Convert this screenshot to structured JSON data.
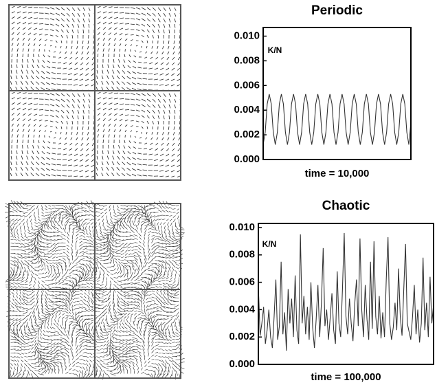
{
  "chart_data": [
    {
      "type": "line",
      "title": "Periodic",
      "ylabel": "K/N",
      "xlabel": "time = 10,000",
      "color": "#333333",
      "ylim": [
        0,
        0.0107
      ],
      "yticks": [
        {
          "value": 0,
          "label": "0.000"
        },
        0.002,
        0.004,
        0.006,
        0.008,
        {
          "value": 0.01,
          "label": "0.010"
        }
      ],
      "values": [
        0.0012,
        0.0022,
        0.0045,
        0.0053,
        0.0045,
        0.0022,
        0.0012,
        0.0022,
        0.0045,
        0.0053,
        0.0045,
        0.0022,
        0.0012,
        0.0022,
        0.0045,
        0.0053,
        0.0045,
        0.0022,
        0.0012,
        0.0022,
        0.0045,
        0.0053,
        0.0045,
        0.0022,
        0.0012,
        0.0022,
        0.0045,
        0.0053,
        0.0045,
        0.0022,
        0.0012,
        0.0022,
        0.0045,
        0.0053,
        0.0045,
        0.0022,
        0.0012,
        0.0022,
        0.0045,
        0.0053,
        0.0045,
        0.0022,
        0.0012,
        0.0022,
        0.0045,
        0.0053,
        0.0045,
        0.0022,
        0.0012,
        0.0022,
        0.0045,
        0.0053,
        0.0045,
        0.0022,
        0.0012,
        0.0022,
        0.0045,
        0.0053,
        0.0045,
        0.0022,
        0.0012,
        0.0022,
        0.0045,
        0.0053,
        0.0045,
        0.0022,
        0.0012,
        0.0022,
        0.0045,
        0.0053,
        0.0045,
        0.0022,
        0.0012,
        0.003
      ]
    },
    {
      "type": "line",
      "title": "Chaotic",
      "ylabel": "K/N",
      "xlabel": "time = 100,000",
      "color": "#333333",
      "ylim": [
        0,
        0.0103
      ],
      "yticks": [
        {
          "value": 0,
          "label": "0.000"
        },
        0.002,
        0.004,
        0.006,
        0.008,
        {
          "value": 0.01,
          "label": "0.010"
        }
      ],
      "values": [
        0.0058,
        0.0021,
        0.003,
        0.0042,
        0.0015,
        0.0025,
        0.004,
        0.002,
        0.0012,
        0.0035,
        0.0062,
        0.0018,
        0.0028,
        0.0075,
        0.0022,
        0.0038,
        0.001,
        0.0055,
        0.003,
        0.0048,
        0.002,
        0.0065,
        0.0025,
        0.0015,
        0.0095,
        0.003,
        0.005,
        0.0022,
        0.0042,
        0.0018,
        0.006,
        0.0027,
        0.0012,
        0.0033,
        0.0058,
        0.002,
        0.0045,
        0.0085,
        0.0028,
        0.004,
        0.0018,
        0.0034,
        0.0052,
        0.0025,
        0.0015,
        0.0068,
        0.003,
        0.002,
        0.0055,
        0.0096,
        0.0035,
        0.0022,
        0.0048,
        0.003,
        0.0017,
        0.0044,
        0.0062,
        0.0028,
        0.0092,
        0.004,
        0.002,
        0.0058,
        0.0033,
        0.0018,
        0.0075,
        0.0026,
        0.009,
        0.0035,
        0.0022,
        0.005,
        0.0019,
        0.0038,
        0.002,
        0.0062,
        0.0093,
        0.003,
        0.0018,
        0.0027,
        0.0045,
        0.0025,
        0.007,
        0.0035,
        0.0021,
        0.0055,
        0.0088,
        0.003,
        0.0024,
        0.0018,
        0.0035,
        0.0058,
        0.0022,
        0.004,
        0.0016,
        0.003,
        0.0078,
        0.0025,
        0.0045,
        0.002,
        0.0064,
        0.003,
        0.0044
      ]
    }
  ]
}
